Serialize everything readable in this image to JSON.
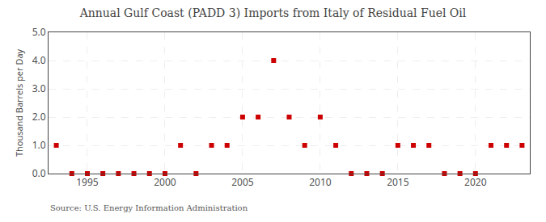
{
  "chart_data": {
    "type": "scatter",
    "title": "Annual Gulf Coast (PADD 3) Imports from Italy of Residual Fuel Oil",
    "ylabel": "Thousand Barrels per Day",
    "annotations": [
      "Source: U.S. Energy Information Administration"
    ],
    "x": [
      1993,
      1994,
      1995,
      1996,
      1997,
      1998,
      1999,
      2000,
      2001,
      2002,
      2003,
      2004,
      2005,
      2006,
      2007,
      2008,
      2009,
      2010,
      2011,
      2012,
      2013,
      2014,
      2015,
      2016,
      2017,
      2018,
      2019,
      2020,
      2021,
      2022,
      2023
    ],
    "values": [
      1.0,
      0.0,
      0.0,
      0.0,
      0.0,
      0.0,
      0.0,
      0.0,
      1.0,
      0.0,
      1.0,
      1.0,
      2.0,
      2.0,
      4.0,
      2.0,
      1.0,
      2.0,
      1.0,
      0.0,
      0.0,
      0.0,
      1.0,
      1.0,
      1.0,
      0.0,
      0.0,
      0.0,
      1.0,
      1.0,
      1.0
    ],
    "color": "#cc0000",
    "marker": "square",
    "xlim": [
      1992.5,
      2023.5
    ],
    "xticks": [
      1995,
      2000,
      2005,
      2010,
      2015,
      2020
    ],
    "ylim": [
      0.0,
      5.0
    ],
    "yticks": [
      {
        "value": 0,
        "label": "0.0"
      },
      {
        "value": 1,
        "label": "1.0"
      },
      {
        "value": 2,
        "label": "2.0"
      },
      {
        "value": 3,
        "label": "3.0"
      },
      {
        "value": 4,
        "label": "4.0"
      },
      {
        "value": 5,
        "label": "5.0"
      }
    ],
    "grid": true
  }
}
